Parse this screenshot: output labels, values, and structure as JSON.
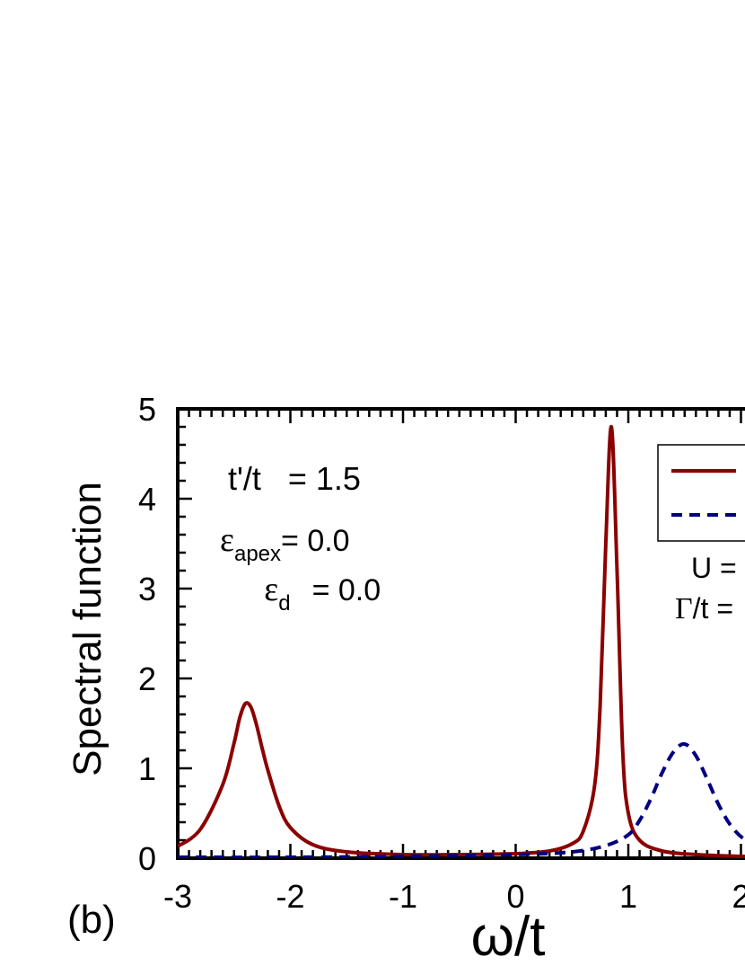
{
  "panel_label": "(b)",
  "annotations": {
    "ratio": "t'/t   = 1.5",
    "eps_apex_symbol": "ε",
    "eps_apex_sub": "apex",
    "eps_apex_value": "= 0.0",
    "eps_d_symbol": "ε",
    "eps_d_sub": "d",
    "eps_d_value": "= 0.0",
    "u_label": "U =",
    "gamma_symbol": "Γ",
    "gamma_label": "/t ="
  },
  "colors": {
    "series1": "#8b0000",
    "series2": "#000080"
  },
  "chart_data": {
    "type": "line",
    "xlabel": "ω/t",
    "ylabel": "Spectral function",
    "xlim": [
      -3,
      2.2
    ],
    "ylim": [
      0,
      5
    ],
    "xticks": [
      -3,
      -2,
      -1,
      0,
      1,
      2
    ],
    "xtick_labels": [
      "-3",
      "-2",
      "-1",
      "0",
      "1",
      "2"
    ],
    "yticks": [
      0,
      1,
      2,
      3,
      4,
      5
    ],
    "ytick_labels": [
      "0",
      "1",
      "2",
      "3",
      "4",
      "5"
    ],
    "legend_position": "top-right",
    "series": [
      {
        "style": "solid",
        "color": "#8b0000",
        "x": [
          -3.0,
          -2.8,
          -2.6,
          -2.5,
          -2.45,
          -2.4,
          -2.35,
          -2.3,
          -2.25,
          -2.2,
          -2.1,
          -2.0,
          -1.8,
          -1.5,
          -1.0,
          -0.5,
          0.0,
          0.3,
          0.5,
          0.6,
          0.7,
          0.75,
          0.8,
          0.85,
          0.9,
          0.95,
          1.0,
          1.1,
          1.3,
          1.6,
          2.0,
          2.2
        ],
        "y": [
          0.13,
          0.32,
          0.82,
          1.28,
          1.56,
          1.72,
          1.68,
          1.48,
          1.22,
          0.98,
          0.58,
          0.34,
          0.15,
          0.07,
          0.04,
          0.04,
          0.05,
          0.08,
          0.16,
          0.3,
          0.8,
          1.7,
          3.5,
          4.8,
          3.2,
          1.2,
          0.5,
          0.2,
          0.08,
          0.04,
          0.02,
          0.02
        ]
      },
      {
        "style": "dashed",
        "color": "#000080",
        "x": [
          -3.0,
          -2.0,
          -1.0,
          0.0,
          0.5,
          0.8,
          1.0,
          1.1,
          1.2,
          1.3,
          1.4,
          1.5,
          1.6,
          1.7,
          1.8,
          1.9,
          2.0,
          2.1,
          2.2
        ],
        "y": [
          0.01,
          0.01,
          0.02,
          0.04,
          0.07,
          0.14,
          0.26,
          0.42,
          0.66,
          0.95,
          1.18,
          1.27,
          1.14,
          0.88,
          0.6,
          0.38,
          0.24,
          0.17,
          0.14
        ]
      }
    ]
  }
}
